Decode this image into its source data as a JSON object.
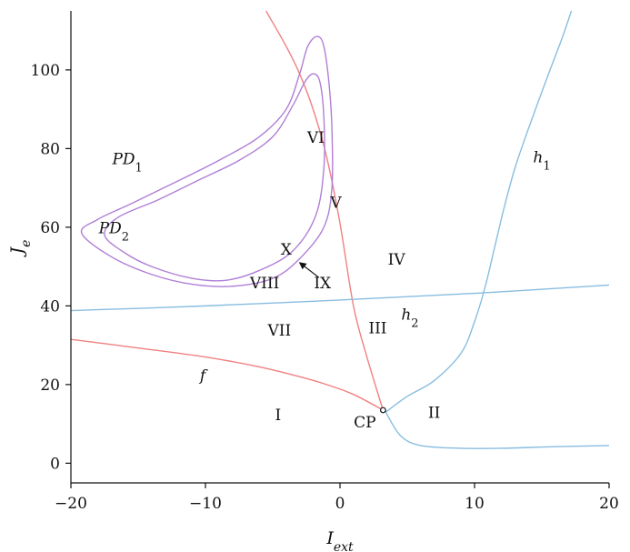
{
  "chart_data": {
    "type": "line",
    "title": "",
    "xlabel": "I",
    "xlabel_sub": "ext",
    "ylabel": "J",
    "ylabel_sub": "e",
    "xlim": [
      -20,
      20
    ],
    "ylim": [
      -5,
      115
    ],
    "xticks": [
      -20,
      -10,
      0,
      10,
      20
    ],
    "xtick_labels": [
      "−20",
      "−10",
      "0",
      "10",
      "20"
    ],
    "yticks": [
      0,
      20,
      40,
      60,
      80,
      100
    ],
    "ytick_labels": [
      "0",
      "20",
      "40",
      "60",
      "80",
      "100"
    ],
    "grid": false,
    "colors": {
      "fold": "#f08080",
      "homoclinic": "#88bde0",
      "period_doubling": "#b07fd6",
      "axes": "#111111"
    },
    "series": [
      {
        "label": "f",
        "color": "#f08080",
        "points": [
          [
            -20,
            31.5
          ],
          [
            -15,
            29.3
          ],
          [
            -10,
            27
          ],
          [
            -6,
            24.5
          ],
          [
            -3,
            22
          ],
          [
            -1,
            20
          ],
          [
            1,
            17.5
          ],
          [
            3.2,
            13.5
          ]
        ]
      },
      {
        "label": "",
        "color": "#f08080",
        "points": [
          [
            -5.5,
            115
          ],
          [
            -4,
            106
          ],
          [
            -3,
            99
          ],
          [
            -2,
            90
          ],
          [
            -1,
            78
          ],
          [
            0,
            61
          ],
          [
            1,
            40
          ],
          [
            2,
            27
          ],
          [
            3.2,
            13.5
          ]
        ]
      },
      {
        "label": "h1",
        "color": "#88bde0",
        "points": [
          [
            3.4,
            13
          ],
          [
            5,
            17
          ],
          [
            7,
            21
          ],
          [
            9,
            28
          ],
          [
            10,
            36
          ],
          [
            10.8,
            45
          ],
          [
            11.5,
            55
          ],
          [
            12.2,
            65
          ],
          [
            13,
            75
          ],
          [
            14,
            85
          ],
          [
            15.5,
            99
          ],
          [
            16.5,
            108
          ],
          [
            17.2,
            115
          ]
        ]
      },
      {
        "label": "",
        "color": "#88bde0",
        "points": [
          [
            3.4,
            13
          ],
          [
            4.5,
            7
          ],
          [
            6,
            4.5
          ],
          [
            9,
            3.8
          ],
          [
            12,
            3.8
          ],
          [
            16,
            4.2
          ],
          [
            20,
            4.5
          ]
        ]
      },
      {
        "label": "h2",
        "color": "#88bde0",
        "points": [
          [
            -20,
            38.8
          ],
          [
            -10,
            40
          ],
          [
            0,
            41.5
          ],
          [
            10,
            43.2
          ],
          [
            20,
            45.3
          ]
        ]
      },
      {
        "label": "PD1",
        "color": "#b07fd6",
        "closed": true,
        "points": [
          [
            -1.7,
            108.5
          ],
          [
            -1.2,
            106
          ],
          [
            -0.8,
            96
          ],
          [
            -0.6,
            85
          ],
          [
            -0.6,
            70
          ],
          [
            -1.2,
            60
          ],
          [
            -3,
            52
          ],
          [
            -5,
            47
          ],
          [
            -8,
            45
          ],
          [
            -11,
            45.5
          ],
          [
            -14,
            48
          ],
          [
            -17,
            52.5
          ],
          [
            -19.2,
            58.5
          ],
          [
            -18,
            62
          ],
          [
            -15.5,
            66
          ],
          [
            -12.5,
            71
          ],
          [
            -9,
            77
          ],
          [
            -6,
            83
          ],
          [
            -4,
            90
          ],
          [
            -3,
            99
          ],
          [
            -2.4,
            106
          ]
        ]
      },
      {
        "label": "PD2",
        "color": "#b07fd6",
        "closed": true,
        "points": [
          [
            -2,
            99
          ],
          [
            -1.5,
            97
          ],
          [
            -1.2,
            88
          ],
          [
            -1.2,
            75
          ],
          [
            -1.8,
            63
          ],
          [
            -3.5,
            54
          ],
          [
            -6,
            49
          ],
          [
            -8.5,
            46.5
          ],
          [
            -11,
            47
          ],
          [
            -14,
            50
          ],
          [
            -16,
            53.5
          ],
          [
            -17.5,
            58
          ],
          [
            -16.5,
            62.5
          ],
          [
            -13.5,
            67
          ],
          [
            -10.5,
            72
          ],
          [
            -7.5,
            77
          ],
          [
            -5,
            83
          ],
          [
            -3.5,
            91
          ],
          [
            -2.6,
            97
          ]
        ]
      }
    ],
    "markers": [
      {
        "label": "CP",
        "x": 3.2,
        "y": 13.5
      }
    ],
    "curve_labels": [
      {
        "text": "f",
        "x": -10.2,
        "y": 21,
        "italic": true
      },
      {
        "text": "h",
        "sub": "1",
        "x": 15,
        "y": 76.5,
        "italic": true
      },
      {
        "text": "h",
        "sub": "2",
        "x": 5.2,
        "y": 36.5,
        "italic": true
      },
      {
        "text": "PD",
        "sub": "1",
        "x": -15.8,
        "y": 76,
        "italic": true
      },
      {
        "text": "PD",
        "sub": "2",
        "x": -16.8,
        "y": 58.5,
        "italic": true
      }
    ],
    "annotations": [
      {
        "text": "I",
        "x": -4.6,
        "y": 11
      },
      {
        "text": "II",
        "x": 7,
        "y": 11.5
      },
      {
        "text": "III",
        "x": 2.8,
        "y": 33
      },
      {
        "text": "IV",
        "x": 4.2,
        "y": 50.5
      },
      {
        "text": "V",
        "x": -0.3,
        "y": 65
      },
      {
        "text": "VI",
        "x": -1.8,
        "y": 81.5
      },
      {
        "text": "VII",
        "x": -4.5,
        "y": 32.5
      },
      {
        "text": "VIII",
        "x": -5.6,
        "y": 44.5
      },
      {
        "text": "IX",
        "x": -1.3,
        "y": 44.5
      },
      {
        "text": "X",
        "x": -4,
        "y": 53
      }
    ],
    "arrow": {
      "from": [
        -1.6,
        47.3
      ],
      "to": [
        -3.0,
        51.0
      ]
    }
  }
}
